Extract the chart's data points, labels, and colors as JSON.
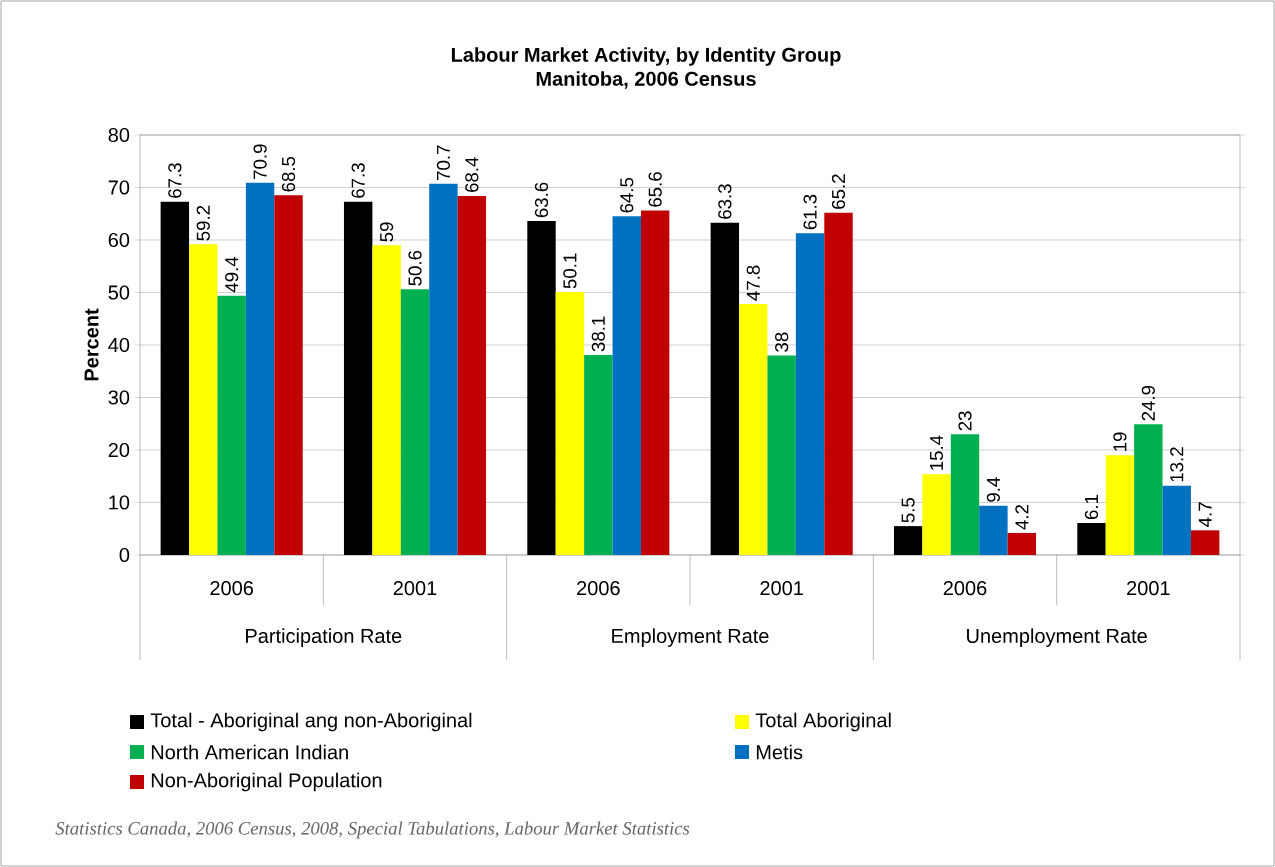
{
  "chart_data": {
    "type": "bar",
    "title": "Labour Market Activity, by Identity Group",
    "subtitle": "Manitoba, 2006 Census",
    "ylabel": "Percent",
    "categories": [
      "2006",
      "2001",
      "2006",
      "2001",
      "2006",
      "2001"
    ],
    "series": [
      {
        "name": "Total - Aboriginal ang non-Aboriginal",
        "color": "#000000",
        "values": [
          67.3,
          67.3,
          63.6,
          63.3,
          5.5,
          6.1
        ]
      },
      {
        "name": "Total Aboriginal",
        "color": "#ffff00",
        "values": [
          59.2,
          59,
          50.1,
          47.8,
          15.4,
          19
        ]
      },
      {
        "name": "North American Indian",
        "color": "#00b050",
        "values": [
          49.4,
          50.6,
          38.1,
          38,
          23,
          24.9
        ]
      },
      {
        "name": "Metis",
        "color": "#0070c0",
        "values": [
          70.9,
          70.7,
          64.5,
          61.3,
          9.4,
          13.2
        ]
      },
      {
        "name": "Non-Aboriginal Population",
        "color": "#c00000",
        "values": [
          68.5,
          68.4,
          65.6,
          65.2,
          4.2,
          4.7
        ]
      }
    ],
    "ylim": [
      0,
      80
    ],
    "yticks": [
      0,
      10,
      20,
      30,
      40,
      50,
      60,
      70,
      80
    ],
    "grid": "y",
    "legend": "bottom",
    "data_labels": true,
    "annotations": [
      "Participation Rate",
      "Employment Rate",
      "Unemployment Rate",
      "Statistics Canada, 2006 Census, 2008, Special Tabulations, Labour Market Statistics"
    ]
  }
}
